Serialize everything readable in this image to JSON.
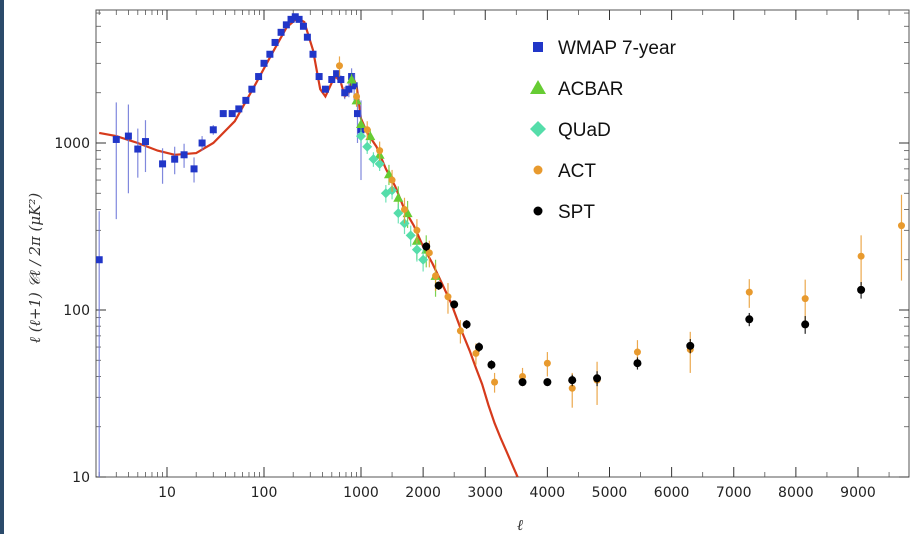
{
  "chart_data": {
    "type": "scatter",
    "xlabel": "ℓ",
    "ylabel": "ℓ (ℓ+1) 𝒞ℓ / 2π (μK²)",
    "y_scale": "log",
    "ylim": [
      10,
      6000
    ],
    "x_scale": "log below 1000, linear above 1000",
    "xlim": [
      2,
      9800
    ],
    "x_ticks": [
      "10",
      "100",
      "1000",
      "2000",
      "3000",
      "4000",
      "5000",
      "6000",
      "7000",
      "8000",
      "9000"
    ],
    "y_ticks": [
      "10",
      "100",
      "1000"
    ],
    "legend_position": "top-right",
    "series": [
      {
        "name": "WMAP 7-year",
        "marker": "square",
        "color": "#2136c8",
        "points": [
          {
            "x": 2,
            "y": 200,
            "err": 190
          },
          {
            "x": 3,
            "y": 1050,
            "err": 700
          },
          {
            "x": 4,
            "y": 1100,
            "err": 600
          },
          {
            "x": 5,
            "y": 920,
            "err": 300
          },
          {
            "x": 6,
            "y": 1020,
            "err": 350
          },
          {
            "x": 9,
            "y": 750,
            "err": 180
          },
          {
            "x": 12,
            "y": 800,
            "err": 150
          },
          {
            "x": 15,
            "y": 850,
            "err": 140
          },
          {
            "x": 19,
            "y": 700,
            "err": 120
          },
          {
            "x": 23,
            "y": 1000,
            "err": 100
          },
          {
            "x": 30,
            "y": 1200,
            "err": 80
          },
          {
            "x": 38,
            "y": 1500,
            "err": 70
          },
          {
            "x": 47,
            "y": 1500,
            "err": 60
          },
          {
            "x": 55,
            "y": 1600,
            "err": 55
          },
          {
            "x": 65,
            "y": 1800,
            "err": 55
          },
          {
            "x": 75,
            "y": 2100,
            "err": 55
          },
          {
            "x": 88,
            "y": 2500,
            "err": 60
          },
          {
            "x": 100,
            "y": 3000,
            "err": 65
          },
          {
            "x": 115,
            "y": 3400,
            "err": 70
          },
          {
            "x": 130,
            "y": 4000,
            "err": 75
          },
          {
            "x": 150,
            "y": 4600,
            "err": 80
          },
          {
            "x": 170,
            "y": 5100,
            "err": 85
          },
          {
            "x": 190,
            "y": 5500,
            "err": 90
          },
          {
            "x": 210,
            "y": 5700,
            "err": 90
          },
          {
            "x": 230,
            "y": 5500,
            "err": 90
          },
          {
            "x": 255,
            "y": 5000,
            "err": 90
          },
          {
            "x": 280,
            "y": 4300,
            "err": 90
          },
          {
            "x": 320,
            "y": 3400,
            "err": 90
          },
          {
            "x": 370,
            "y": 2500,
            "err": 90
          },
          {
            "x": 430,
            "y": 2100,
            "err": 100
          },
          {
            "x": 500,
            "y": 2400,
            "err": 110
          },
          {
            "x": 560,
            "y": 2600,
            "err": 120
          },
          {
            "x": 620,
            "y": 2400,
            "err": 140
          },
          {
            "x": 680,
            "y": 2000,
            "err": 170
          },
          {
            "x": 750,
            "y": 2100,
            "err": 220
          },
          {
            "x": 800,
            "y": 2500,
            "err": 300
          },
          {
            "x": 850,
            "y": 2200,
            "err": 400
          },
          {
            "x": 920,
            "y": 1500,
            "err": 500
          },
          {
            "x": 1000,
            "y": 1200,
            "err": 600
          }
        ]
      },
      {
        "name": "ACBAR",
        "marker": "triangle",
        "color": "#66cc33",
        "points": [
          {
            "x": 800,
            "y": 2400,
            "err": 200
          },
          {
            "x": 900,
            "y": 1800,
            "err": 150
          },
          {
            "x": 1000,
            "y": 1300,
            "err": 120
          },
          {
            "x": 1150,
            "y": 1100,
            "err": 110
          },
          {
            "x": 1300,
            "y": 850,
            "err": 100
          },
          {
            "x": 1450,
            "y": 650,
            "err": 90
          },
          {
            "x": 1600,
            "y": 470,
            "err": 80
          },
          {
            "x": 1750,
            "y": 380,
            "err": 70
          },
          {
            "x": 1900,
            "y": 260,
            "err": 60
          },
          {
            "x": 2050,
            "y": 230,
            "err": 50
          },
          {
            "x": 2200,
            "y": 160,
            "err": 40
          }
        ]
      },
      {
        "name": "QUaD",
        "marker": "diamond",
        "color": "#55ddaa",
        "points": [
          {
            "x": 1000,
            "y": 1100,
            "err": 100
          },
          {
            "x": 1100,
            "y": 950,
            "err": 90
          },
          {
            "x": 1200,
            "y": 800,
            "err": 80
          },
          {
            "x": 1300,
            "y": 750,
            "err": 70
          },
          {
            "x": 1400,
            "y": 500,
            "err": 60
          },
          {
            "x": 1500,
            "y": 520,
            "err": 60
          },
          {
            "x": 1600,
            "y": 380,
            "err": 50
          },
          {
            "x": 1700,
            "y": 330,
            "err": 45
          },
          {
            "x": 1800,
            "y": 280,
            "err": 40
          },
          {
            "x": 1900,
            "y": 230,
            "err": 35
          },
          {
            "x": 2000,
            "y": 200,
            "err": 30
          }
        ]
      },
      {
        "name": "ACT",
        "marker": "circle",
        "color": "#e89a2e",
        "points": [
          {
            "x": 600,
            "y": 2900,
            "err": 400
          },
          {
            "x": 900,
            "y": 1900,
            "err": 250
          },
          {
            "x": 1100,
            "y": 1200,
            "err": 150
          },
          {
            "x": 1300,
            "y": 900,
            "err": 120
          },
          {
            "x": 1500,
            "y": 600,
            "err": 90
          },
          {
            "x": 1700,
            "y": 400,
            "err": 70
          },
          {
            "x": 1900,
            "y": 300,
            "err": 50
          },
          {
            "x": 2100,
            "y": 220,
            "err": 40
          },
          {
            "x": 2200,
            "y": 160,
            "err": 30
          },
          {
            "x": 2400,
            "y": 120,
            "err": 25
          },
          {
            "x": 2600,
            "y": 75,
            "err": 12
          },
          {
            "x": 2850,
            "y": 55,
            "err": 8
          },
          {
            "x": 3150,
            "y": 37,
            "err": 5
          },
          {
            "x": 3600,
            "y": 40,
            "err": 5
          },
          {
            "x": 4000,
            "y": 48,
            "err": 8
          },
          {
            "x": 4400,
            "y": 34,
            "err": 8
          },
          {
            "x": 4800,
            "y": 38,
            "err": 11
          },
          {
            "x": 5450,
            "y": 56,
            "err": 10
          },
          {
            "x": 6300,
            "y": 58,
            "err": 16
          },
          {
            "x": 7250,
            "y": 128,
            "err": 25
          },
          {
            "x": 8150,
            "y": 117,
            "err": 35
          },
          {
            "x": 9050,
            "y": 210,
            "err": 70
          },
          {
            "x": 9700,
            "y": 320,
            "err": 170
          }
        ]
      },
      {
        "name": "SPT",
        "marker": "circle",
        "color": "#000000",
        "points": [
          {
            "x": 2050,
            "y": 240,
            "err": 15
          },
          {
            "x": 2250,
            "y": 140,
            "err": 8
          },
          {
            "x": 2500,
            "y": 108,
            "err": 6
          },
          {
            "x": 2700,
            "y": 82,
            "err": 5
          },
          {
            "x": 2900,
            "y": 60,
            "err": 4
          },
          {
            "x": 3100,
            "y": 47,
            "err": 3
          },
          {
            "x": 3600,
            "y": 37,
            "err": 2
          },
          {
            "x": 4000,
            "y": 37,
            "err": 2
          },
          {
            "x": 4400,
            "y": 38,
            "err": 3
          },
          {
            "x": 4800,
            "y": 39,
            "err": 4
          },
          {
            "x": 5450,
            "y": 48,
            "err": 4
          },
          {
            "x": 6300,
            "y": 61,
            "err": 6
          },
          {
            "x": 7250,
            "y": 88,
            "err": 8
          },
          {
            "x": 8150,
            "y": 82,
            "err": 10
          },
          {
            "x": 9050,
            "y": 132,
            "err": 15
          }
        ]
      },
      {
        "name": "",
        "marker": "line",
        "color": "#d63a1c",
        "points": [
          {
            "x": 2,
            "y": 1150
          },
          {
            "x": 3,
            "y": 1100
          },
          {
            "x": 5,
            "y": 1000
          },
          {
            "x": 8,
            "y": 900
          },
          {
            "x": 12,
            "y": 850
          },
          {
            "x": 20,
            "y": 870
          },
          {
            "x": 30,
            "y": 1000
          },
          {
            "x": 50,
            "y": 1350
          },
          {
            "x": 80,
            "y": 2200
          },
          {
            "x": 120,
            "y": 3400
          },
          {
            "x": 170,
            "y": 4900
          },
          {
            "x": 220,
            "y": 5600
          },
          {
            "x": 260,
            "y": 5300
          },
          {
            "x": 320,
            "y": 3600
          },
          {
            "x": 380,
            "y": 2100
          },
          {
            "x": 430,
            "y": 1900
          },
          {
            "x": 500,
            "y": 2300
          },
          {
            "x": 550,
            "y": 2500
          },
          {
            "x": 620,
            "y": 2300
          },
          {
            "x": 680,
            "y": 1900
          },
          {
            "x": 750,
            "y": 2000
          },
          {
            "x": 820,
            "y": 2500
          },
          {
            "x": 900,
            "y": 2200
          },
          {
            "x": 1000,
            "y": 1400
          },
          {
            "x": 1100,
            "y": 1150
          },
          {
            "x": 1250,
            "y": 950
          },
          {
            "x": 1400,
            "y": 700
          },
          {
            "x": 1550,
            "y": 550
          },
          {
            "x": 1700,
            "y": 400
          },
          {
            "x": 1850,
            "y": 320
          },
          {
            "x": 2000,
            "y": 240
          },
          {
            "x": 2150,
            "y": 190
          },
          {
            "x": 2300,
            "y": 145
          },
          {
            "x": 2450,
            "y": 110
          },
          {
            "x": 2600,
            "y": 78
          },
          {
            "x": 2750,
            "y": 57
          },
          {
            "x": 2850,
            "y": 45
          },
          {
            "x": 2950,
            "y": 36
          },
          {
            "x": 3050,
            "y": 27
          },
          {
            "x": 3150,
            "y": 21
          },
          {
            "x": 3250,
            "y": 17
          },
          {
            "x": 3350,
            "y": 14
          },
          {
            "x": 3450,
            "y": 11.5
          },
          {
            "x": 3520,
            "y": 10
          }
        ]
      }
    ]
  }
}
